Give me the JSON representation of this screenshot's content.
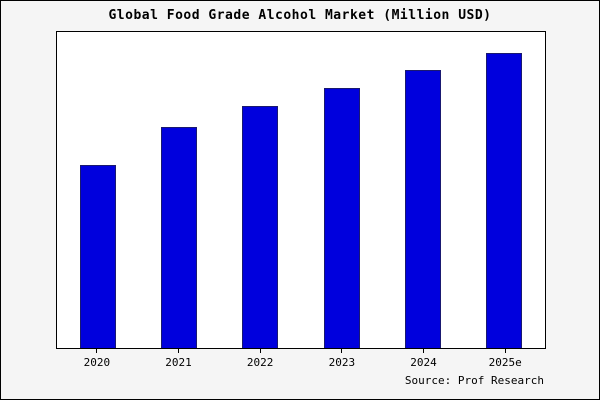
{
  "title": "Global Food Grade Alcohol Market (Million USD)",
  "source": "Source: Prof Research",
  "colors": {
    "bar_fill": "#0000dd",
    "bar_border": "#191970",
    "plot_background": "#ffffff",
    "page_background": "#f5f5f5"
  },
  "chart_data": {
    "type": "bar",
    "title": "Global Food Grade Alcohol Market (Million USD)",
    "categories": [
      "2020",
      "2021",
      "2022",
      "2023",
      "2024",
      "2025e"
    ],
    "values": [
      62,
      75,
      82,
      88,
      94,
      100
    ],
    "xlabel": "",
    "ylabel": "",
    "ylim": [
      0,
      107
    ],
    "grid": false,
    "legend": false
  }
}
